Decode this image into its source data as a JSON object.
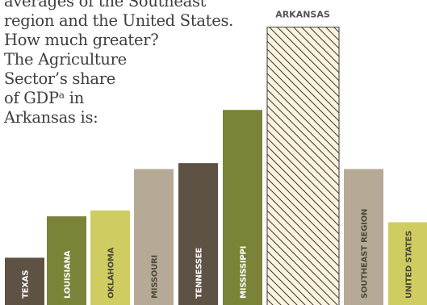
{
  "intro_lines": [
    "averages of the Southeast",
    "region and the United States.",
    "How much greater?",
    "The Agriculture",
    "Sector’s share",
    "of GDPᵃ in",
    "Arkansas is:"
  ],
  "chart_data": {
    "type": "bar",
    "title": "",
    "xlabel": "",
    "ylabel": "",
    "categories": [
      "TEXAS",
      "LOUISIANA",
      "OKLAHOMA",
      "MISSOURI",
      "TENNESSEE",
      "MISSISSIPPI",
      "ARKANSAS",
      "SOUTHEAST REGION",
      "UNITED STATES"
    ],
    "values": [
      0.8,
      1.5,
      1.6,
      2.3,
      2.4,
      3.3,
      4.7,
      2.3,
      1.4
    ],
    "ylim": [
      0,
      4.75
    ],
    "highlight": "ARKANSAS",
    "callout_label": "ARKANSAS",
    "grid": false,
    "legend": "none",
    "colors": {
      "TEXAS": "#5e5244",
      "LOUISIANA": "#7b8339",
      "OKLAHOMA": "#cfcd62",
      "MISSOURI": "#b6aa97",
      "TENNESSEE": "#5e5244",
      "MISSISSIPPI": "#7b8339",
      "ARKANSAS": "#fbf3dc",
      "SOUTHEAST REGION": "#b6aa97",
      "UNITED STATES": "#cfcd62"
    },
    "label_colors": {
      "TEXAS": "#ffffff",
      "LOUISIANA": "#ffffff",
      "OKLAHOMA": "#4a4a3a",
      "MISSOURI": "#4a4a3a",
      "TENNESSEE": "#ffffff",
      "MISSISSIPPI": "#ffffff",
      "ARKANSAS": "#555555",
      "SOUTHEAST REGION": "#4a4a3a",
      "UNITED STATES": "#4a4a3a"
    },
    "hatch_color": "#3a3a3a"
  }
}
